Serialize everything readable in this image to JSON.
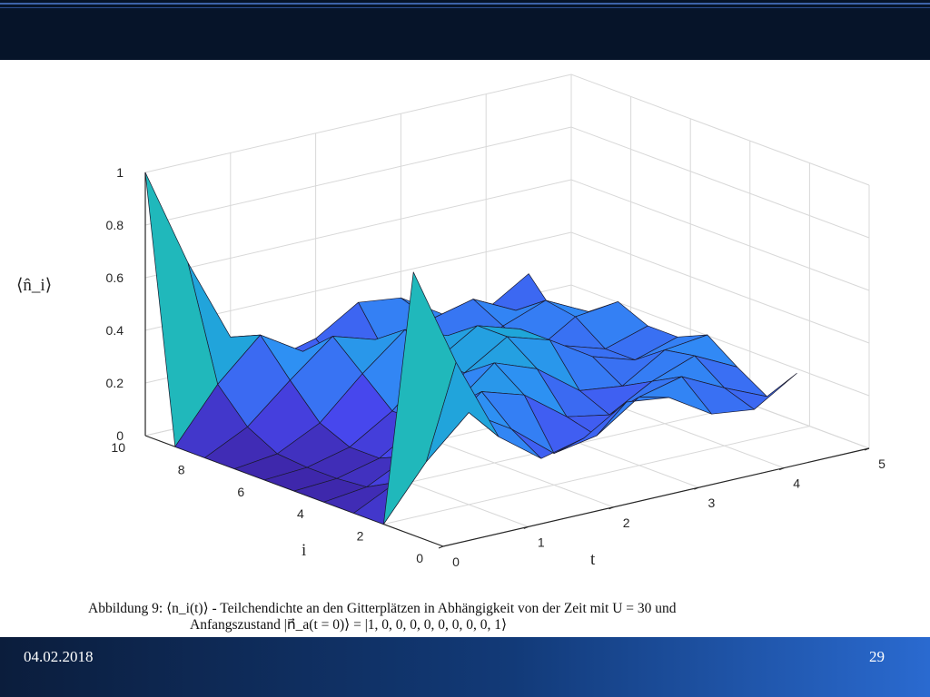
{
  "slide": {
    "date": "04.02.2018",
    "page": "29",
    "caption_line1": "Abbildung 9: ⟨n_i(t)⟩ - Teilchendichte an den Gitterplätzen in Abhängigkeit von der Zeit mit U = 30 und",
    "caption_line2": "Anfangszustand |n⃗_a(t = 0)⟩ = |1, 0, 0, 0, 0, 0, 0, 0, 0, 1⟩"
  },
  "chart_data": {
    "type": "surface3d",
    "zlabel": "⟨n̂_i⟩",
    "xlabel": "t",
    "ylabel": "i",
    "t_lim": [
      0,
      5
    ],
    "i_lim": [
      0,
      10
    ],
    "z_lim": [
      0,
      1
    ],
    "t_ticks": [
      "0",
      "1",
      "2",
      "3",
      "4",
      "5"
    ],
    "i_ticks": [
      "0",
      "2",
      "4",
      "6",
      "8",
      "10"
    ],
    "z_ticks": [
      "0",
      "0.2",
      "0.4",
      "0.6",
      "0.8",
      "1"
    ],
    "grid": true,
    "colormap": [
      "#3e26a8",
      "#4748f0",
      "#2f8ef5",
      "#16b5c8",
      "#4cc680",
      "#bcbd33",
      "#fdd72f",
      "#f9fb0e"
    ],
    "t": [
      0,
      0.5,
      1,
      1.5,
      2,
      2.5,
      3,
      3.5,
      4,
      4.5
    ],
    "i": [
      1,
      2,
      3,
      4,
      5,
      6,
      7,
      8,
      9,
      10
    ],
    "n": [
      [
        1.0,
        0.62,
        0.3,
        0.18,
        0.22,
        0.32,
        0.3,
        0.2,
        0.18,
        0.28
      ],
      [
        0.0,
        0.2,
        0.35,
        0.25,
        0.12,
        0.15,
        0.26,
        0.3,
        0.22,
        0.15
      ],
      [
        0.0,
        0.08,
        0.22,
        0.35,
        0.3,
        0.18,
        0.15,
        0.24,
        0.3,
        0.22
      ],
      [
        0.0,
        0.02,
        0.1,
        0.25,
        0.38,
        0.32,
        0.2,
        0.18,
        0.28,
        0.3
      ],
      [
        0.0,
        0.01,
        0.05,
        0.15,
        0.3,
        0.4,
        0.35,
        0.25,
        0.2,
        0.25
      ],
      [
        0.0,
        0.01,
        0.05,
        0.15,
        0.3,
        0.4,
        0.35,
        0.25,
        0.2,
        0.25
      ],
      [
        0.0,
        0.02,
        0.1,
        0.25,
        0.38,
        0.32,
        0.2,
        0.18,
        0.28,
        0.3
      ],
      [
        0.0,
        0.08,
        0.22,
        0.35,
        0.3,
        0.18,
        0.15,
        0.24,
        0.3,
        0.22
      ],
      [
        0.0,
        0.2,
        0.35,
        0.25,
        0.12,
        0.15,
        0.26,
        0.3,
        0.22,
        0.15
      ],
      [
        1.0,
        0.62,
        0.3,
        0.18,
        0.22,
        0.32,
        0.3,
        0.2,
        0.18,
        0.28
      ]
    ]
  }
}
